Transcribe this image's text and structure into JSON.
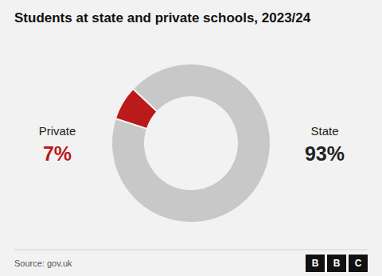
{
  "chart_data": {
    "type": "donut",
    "title": "Students at state and private schools, 2023/24",
    "categories": [
      "Private",
      "State"
    ],
    "values": [
      7,
      93
    ],
    "value_labels": [
      "7%",
      "93%"
    ],
    "data_labels": true,
    "colors": [
      "#bb1a1a",
      "#c8c8c8"
    ],
    "annotations": [
      "Source: gov.uk",
      "BBC"
    ]
  }
}
